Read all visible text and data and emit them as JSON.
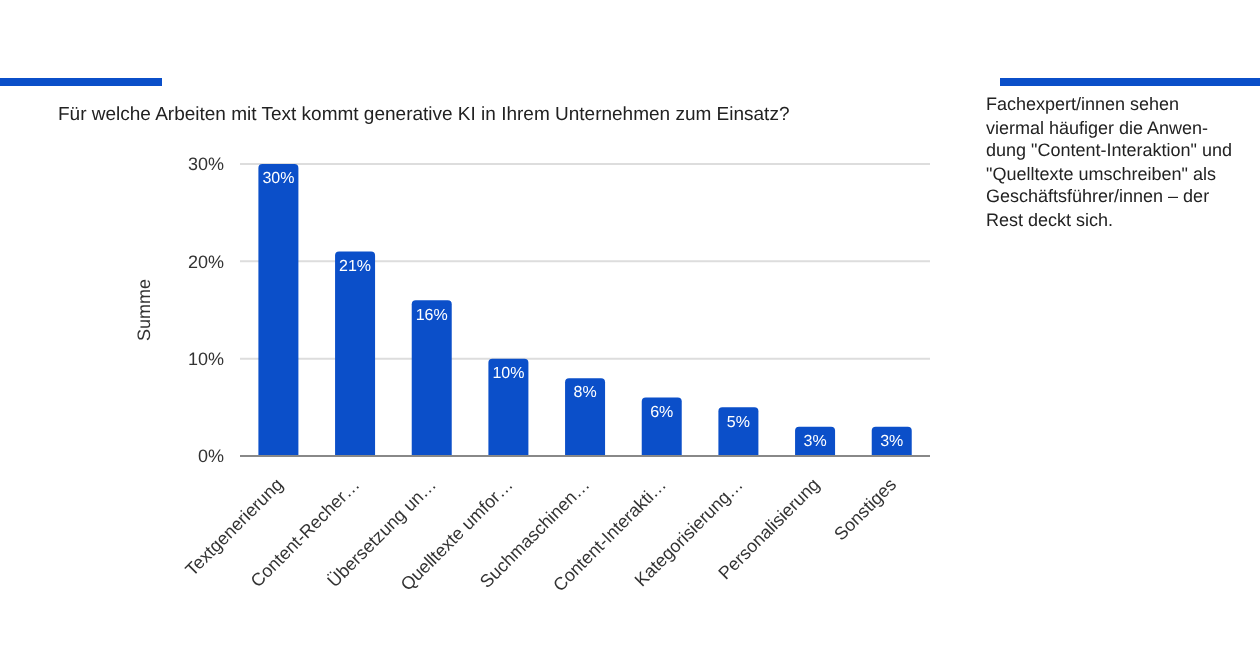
{
  "chart_data": {
    "type": "bar",
    "title": "Für welche Arbeiten mit Text kommt generative KI in Ihrem Unternehmen zum Einsatz?",
    "ylabel": "Summe",
    "categories": [
      "Textgenerierung",
      "Content-Recher…",
      "Übersetzung un…",
      "Quelltexte umfor…",
      "Suchmaschinen…",
      "Content-Interakti…",
      "Kategorisierung…",
      "Personalisierung",
      "Sonstiges"
    ],
    "values": [
      30,
      21,
      16,
      10,
      8,
      6,
      5,
      3,
      3
    ],
    "value_labels": [
      "30%",
      "21%",
      "16%",
      "10%",
      "8%",
      "6%",
      "5%",
      "3%",
      "3%"
    ],
    "color": "#0b4fc9",
    "ylim": [
      0,
      30
    ],
    "yticks": [
      {
        "value": 0,
        "label": "0%"
      },
      {
        "value": 10,
        "label": "10%"
      },
      {
        "value": 20,
        "label": "20%"
      },
      {
        "value": 30,
        "label": "30%"
      }
    ],
    "grid": "y",
    "legend": false,
    "annotations": [
      "Fachexpert/innen sehen viermal häufiger die Anwen-dung \"Content-Interaktion\" und \"Quelltexte umschreiben\" als Geschäftsführer/innen – der Rest deckt sich."
    ]
  }
}
